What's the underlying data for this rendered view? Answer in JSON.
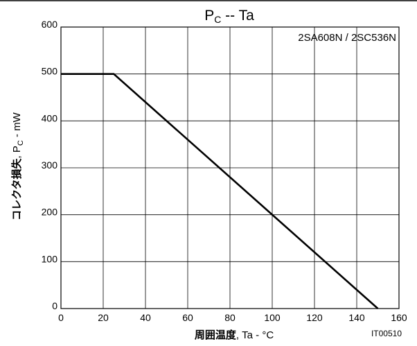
{
  "chart_data": {
    "type": "line",
    "title_main": "P",
    "title_sub": "C",
    "title_rest": " -- Ta",
    "annotation": "2SA608N / 2SC536N",
    "ylabel_bold": "コレクタ損失",
    "ylabel_rest": ", P",
    "ylabel_sub": "C",
    "ylabel_unit": " - mW",
    "xlabel_bold": "周囲温度",
    "xlabel_rest": ", Ta - °C",
    "figure_code": "IT00510",
    "xlim": [
      0,
      160
    ],
    "ylim": [
      0,
      600
    ],
    "xticks": [
      0,
      20,
      40,
      60,
      80,
      100,
      120,
      140,
      160
    ],
    "yticks": [
      0,
      100,
      200,
      300,
      400,
      500,
      600
    ],
    "grid": true,
    "series": [
      {
        "x": [
          0,
          25,
          150
        ],
        "y": [
          500,
          500,
          0
        ]
      }
    ]
  }
}
